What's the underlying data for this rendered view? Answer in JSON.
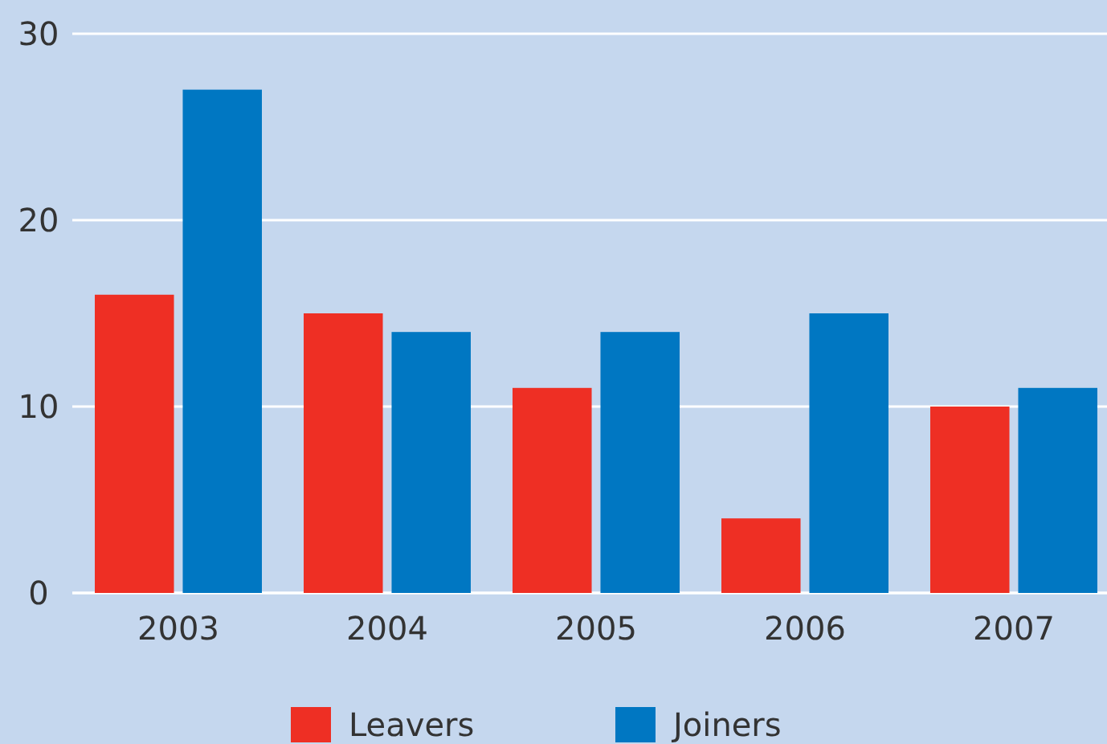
{
  "chart_data": {
    "type": "bar",
    "categories": [
      "2003",
      "2004",
      "2005",
      "2006",
      "2007"
    ],
    "series": [
      {
        "name": "Leavers",
        "color": "#ee2f24",
        "values": [
          16,
          15,
          11,
          4,
          10
        ]
      },
      {
        "name": "Joiners",
        "color": "#0077c2",
        "values": [
          27,
          14,
          14,
          15,
          11
        ]
      }
    ],
    "ylim": [
      0,
      30
    ],
    "yticks": [
      0,
      10,
      20,
      30
    ],
    "grid": "y",
    "legend": "bottom"
  }
}
